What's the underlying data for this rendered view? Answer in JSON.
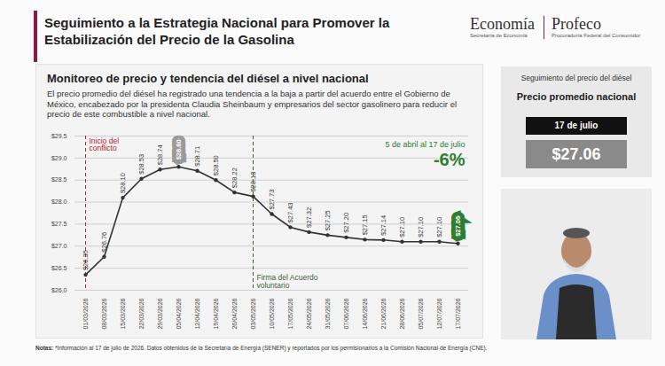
{
  "header": {
    "title": "Seguimiento a la Estrategia Nacional para Promover la Estabilización del Precio de la Gasolina",
    "logos": [
      "Economía",
      "Profeco"
    ],
    "logo_subtitles": [
      "Secretaría de Economía",
      "Procuraduría Federal del Consumidor"
    ]
  },
  "chart_data": {
    "type": "line",
    "title": "Monitoreo de precio y tendencia del diésel a nivel nacional",
    "subtitle": "El precio promedio del diésel ha registrado una tendencia a la baja a partir del acuerdo entre el Gobierno de México, encabezado por la presidenta Claudia Sheinbaum y empresarios del sector gasolinero para reducir el precio de este combustible a nivel nacional.",
    "categories": [
      "01/03/2026",
      "08/03/2026",
      "15/03/2026",
      "22/03/2026",
      "29/03/2026",
      "05/04/2026",
      "12/04/2026",
      "19/04/2026",
      "26/04/2026",
      "03/05/2026",
      "10/05/2026",
      "17/05/2026",
      "24/05/2026",
      "31/05/2026",
      "07/06/2026",
      "14/06/2026",
      "21/06/2026",
      "28/06/2026",
      "05/07/2026",
      "12/07/2026",
      "17/07/2026"
    ],
    "values": [
      26.35,
      26.76,
      28.1,
      28.53,
      28.74,
      28.8,
      28.71,
      28.5,
      28.22,
      28.13,
      27.73,
      27.43,
      27.32,
      27.25,
      27.2,
      27.15,
      27.14,
      27.1,
      27.1,
      27.1,
      27.06
    ],
    "value_labels": [
      "$26.35",
      "$26.76",
      "$28.10",
      "$28.53",
      "$28.74",
      "$28.80",
      "$28.71",
      "$28.50",
      "$28.22",
      "$28.13",
      "$27.73",
      "$27.43",
      "$27.32",
      "$27.25",
      "$27.20",
      "$27.15",
      "$27.14",
      "$27.10",
      "$27.10",
      "$27.10",
      "$27.06"
    ],
    "color": "#333333",
    "marker": "circle",
    "data_labels": true,
    "grid": true,
    "ylim": [
      26.0,
      29.5
    ],
    "yticks": [
      {
        "value": 26.0,
        "label": "$26.0"
      },
      {
        "value": 26.5,
        "label": "$26.5"
      },
      {
        "value": 27.0,
        "label": "$27.0"
      },
      {
        "value": 27.5,
        "label": "$27.5"
      },
      {
        "value": 28.0,
        "label": "$28.0"
      },
      {
        "value": 28.5,
        "label": "$28.5"
      },
      {
        "value": 29.0,
        "label": "$29.0"
      },
      {
        "value": 29.5,
        "label": "$29.5"
      }
    ],
    "annotations": [
      {
        "text": "Inicio del conflicto",
        "x": "01/03/2026",
        "color": "#b0232a",
        "line_style": "dashed"
      },
      {
        "text": "Firma del Acuerdo voluntario",
        "x": "03/05/2026",
        "color": "#3f5f3a",
        "line_style": "dashed"
      }
    ],
    "change_period": "5 de abril al 17 de julio",
    "change_label": "-6%"
  },
  "side_panel": {
    "heading": "Seguimiento del precio del diésel",
    "subheading": "Precio promedio nacional",
    "date": "17 de julio",
    "price": "$27.06"
  },
  "notes": {
    "label": "Notas:",
    "text": "*Información al 17 de julio de 2026. Datos obtenidos de la Secretaría de Energía (SENER) y reportados por los permisionarios a la Comisión Nacional de Energía (CNE)."
  }
}
